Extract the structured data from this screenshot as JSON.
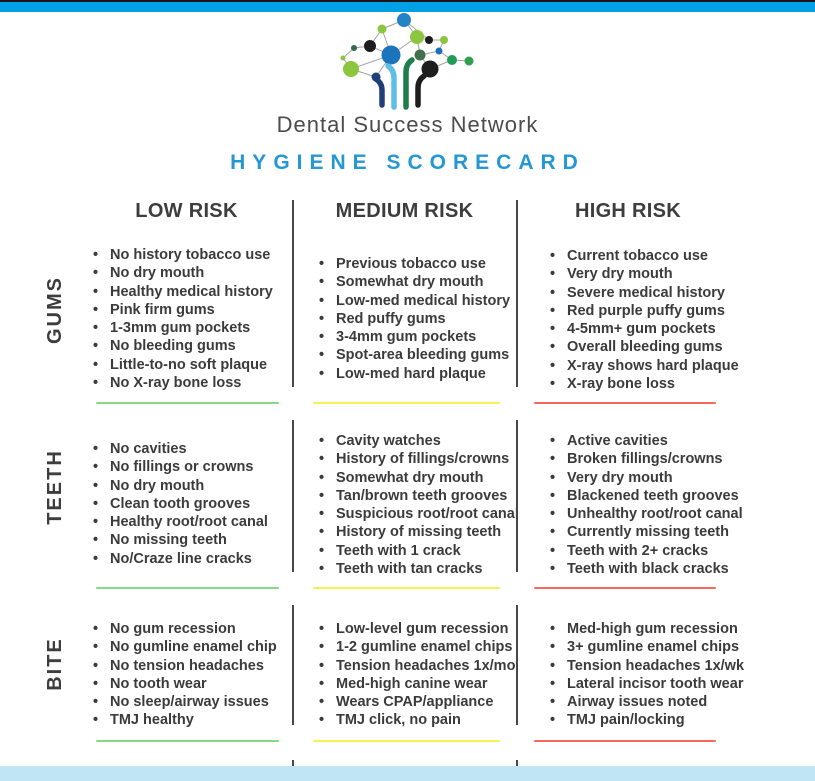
{
  "header": {
    "brand": "Dental Success Network",
    "title": "HYGIENE SCORECARD"
  },
  "columns": [
    "LOW RISK",
    "MEDIUM RISK",
    "HIGH RISK"
  ],
  "rows": [
    {
      "label": "GUMS",
      "low": [
        "No history tobacco use",
        "No dry mouth",
        "Healthy medical history",
        "Pink firm gums",
        "1-3mm gum pockets",
        "No bleeding gums",
        "Little-to-no soft plaque",
        "No X-ray bone loss"
      ],
      "medium": [
        "Previous tobacco use",
        "Somewhat dry mouth",
        "Low-med medical history",
        "Red puffy gums",
        "3-4mm gum pockets",
        "Spot-area bleeding gums",
        "Low-med hard plaque"
      ],
      "high": [
        "Current tobacco use",
        "Very dry mouth",
        "Severe medical history",
        "Red purple puffy gums",
        "4-5mm+ gum pockets",
        "Overall bleeding gums",
        "X-ray shows hard plaque",
        "X-ray bone loss"
      ]
    },
    {
      "label": "TEETH",
      "low": [
        "No cavities",
        "No fillings or crowns",
        "No dry mouth",
        "Clean tooth grooves",
        "Healthy root/root canal",
        "No missing teeth",
        "No/Craze line cracks"
      ],
      "medium": [
        "Cavity watches",
        "History of fillings/crowns",
        "Somewhat dry mouth",
        "Tan/brown teeth grooves",
        "Suspicious root/root canal",
        "History of missing teeth",
        "Teeth with 1 crack",
        "Teeth with tan cracks"
      ],
      "high": [
        "Active cavities",
        "Broken fillings/crowns",
        "Very dry mouth",
        "Blackened teeth grooves",
        "Unhealthy root/root canal",
        "Currently missing teeth",
        "Teeth with 2+ cracks",
        "Teeth with black cracks"
      ]
    },
    {
      "label": "BITE",
      "low": [
        "No gum recession",
        "No gumline enamel chip",
        "No tension headaches",
        "No tooth wear",
        "No sleep/airway issues",
        "TMJ healthy"
      ],
      "medium": [
        "Low-level gum recession",
        "1-2 gumline enamel chips",
        "Tension headaches 1x/mo",
        "Med-high canine wear",
        "Wears CPAP/appliance",
        "TMJ click, no pain"
      ],
      "high": [
        "Med-high gum recession",
        "3+ gumline enamel chips",
        "Tension headaches 1x/wk",
        "Lateral incisor tooth wear",
        "Airway issues noted",
        "TMJ pain/locking"
      ]
    }
  ],
  "colors": {
    "top_bar": "#00a0e6",
    "title_blue": "#2598d4",
    "text_dark": "#3b3b3b",
    "low_risk_underline": "#86da85",
    "medium_risk_underline": "#f7f04e",
    "high_risk_underline": "#f4695b",
    "bottom_bar": "#c0e5f5",
    "logo_green": "#8cc63f",
    "logo_blue": "#1c75bc"
  }
}
